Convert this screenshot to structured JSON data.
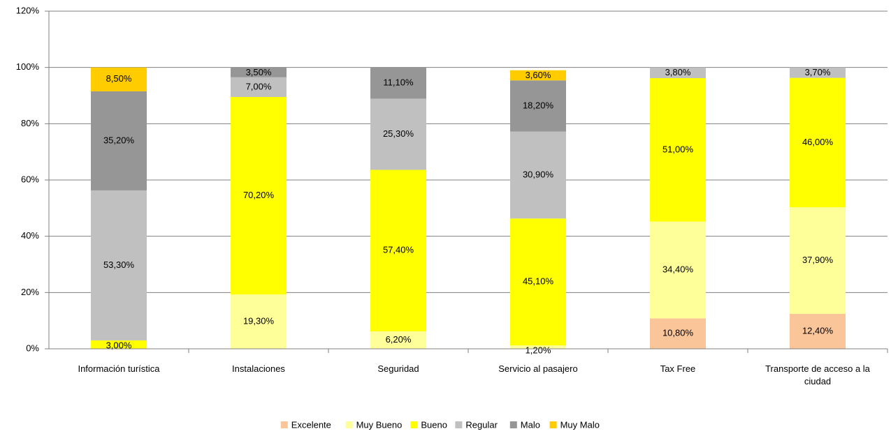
{
  "chart_data": {
    "type": "stacked_bar",
    "categories": [
      "Información turística",
      "Instalaciones",
      "Seguridad",
      "Servicio al pasajero",
      "Tax Free",
      "Transporte de acceso a la ciudad"
    ],
    "series": [
      {
        "name": "Excelente",
        "color": "#fbc59a",
        "values": [
          null,
          null,
          null,
          null,
          10.8,
          12.4
        ],
        "value_labels": [
          null,
          null,
          null,
          null,
          "10,80%",
          "12,40%"
        ]
      },
      {
        "name": "Muy Bueno",
        "color": "#ffff99",
        "values": [
          null,
          19.3,
          6.2,
          1.2,
          34.4,
          37.9
        ],
        "value_labels": [
          null,
          "19,30%",
          "6,20%",
          "1,20%",
          "34,40%",
          "37,90%"
        ]
      },
      {
        "name": "Bueno",
        "color": "#ffff00",
        "values": [
          3.0,
          70.2,
          57.4,
          45.1,
          51.0,
          46.0
        ],
        "value_labels": [
          "3,00%",
          "70,20%",
          "57,40%",
          "45,10%",
          "51,00%",
          "46,00%"
        ]
      },
      {
        "name": "Regular",
        "color": "#c0c0c0",
        "values": [
          53.3,
          7.0,
          25.3,
          30.9,
          3.8,
          3.7
        ],
        "value_labels": [
          "53,30%",
          "7,00%",
          "25,30%",
          "30,90%",
          "3,80%",
          "3,70%"
        ]
      },
      {
        "name": "Malo",
        "color": "#969696",
        "values": [
          35.2,
          3.5,
          11.1,
          18.2,
          null,
          null
        ],
        "value_labels": [
          "35,20%",
          "3,50%",
          "11,10%",
          "18,20%",
          null,
          null
        ]
      },
      {
        "name": "Muy Malo",
        "color": "#ffcc00",
        "values": [
          8.5,
          null,
          null,
          3.6,
          null,
          null
        ],
        "value_labels": [
          "8,50%",
          null,
          null,
          "3,60%",
          null,
          null
        ]
      }
    ],
    "ylim": [
      0,
      120
    ],
    "yticks": [
      {
        "value": 0,
        "label": "0%"
      },
      {
        "value": 20,
        "label": "20%"
      },
      {
        "value": 40,
        "label": "40%"
      },
      {
        "value": 60,
        "label": "60%"
      },
      {
        "value": 80,
        "label": "80%"
      },
      {
        "value": 100,
        "label": "100%"
      },
      {
        "value": 120,
        "label": "120%"
      }
    ],
    "grid": true,
    "legend": "bottom"
  }
}
